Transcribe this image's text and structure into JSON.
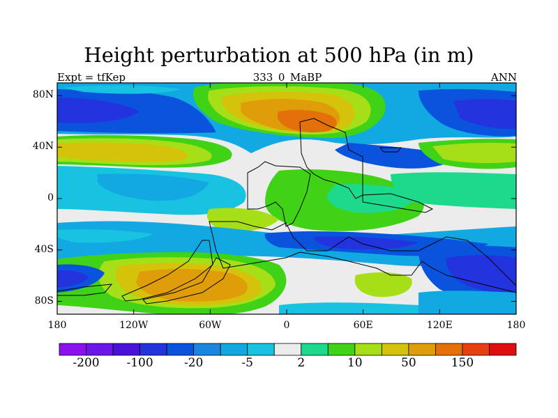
{
  "title": "Height perturbation at 500 hPa (in m)",
  "subtitle_left": "Expt = tfKep",
  "subtitle_center": "333_0_MaBP",
  "subtitle_right": "ANN",
  "axes": {
    "x_ticks": [
      {
        "value": -180,
        "label": "180"
      },
      {
        "value": -120,
        "label": "120W"
      },
      {
        "value": -60,
        "label": "60W"
      },
      {
        "value": 0,
        "label": "0"
      },
      {
        "value": 60,
        "label": "60E"
      },
      {
        "value": 120,
        "label": "120E"
      },
      {
        "value": 180,
        "label": "180"
      }
    ],
    "y_ticks": [
      {
        "value": 80,
        "label": "80N"
      },
      {
        "value": 40,
        "label": "40N"
      },
      {
        "value": 0,
        "label": "0"
      },
      {
        "value": -40,
        "label": "40S"
      },
      {
        "value": -80,
        "label": "80S"
      }
    ],
    "lon_range": [
      -180,
      180
    ],
    "lat_range": [
      -90,
      90
    ]
  },
  "colorbar": {
    "colors": [
      "#8d10ef",
      "#6d16ea",
      "#4a12d9",
      "#2333dd",
      "#0a54dd",
      "#1a86e0",
      "#12a8e2",
      "#18c3e2",
      "#ececec",
      "#1dd98b",
      "#3fd216",
      "#a6df18",
      "#d4c30a",
      "#e09d0a",
      "#e3700a",
      "#e64010",
      "#e00e0e"
    ],
    "labels": [
      {
        "after_box": 1,
        "text": "-200"
      },
      {
        "after_box": 3,
        "text": "-100"
      },
      {
        "after_box": 5,
        "text": "-20"
      },
      {
        "after_box": 7,
        "text": "-5"
      },
      {
        "after_box": 9,
        "text": "2"
      },
      {
        "after_box": 11,
        "text": "10"
      },
      {
        "after_box": 13,
        "text": "50"
      },
      {
        "after_box": 15,
        "text": "150"
      }
    ]
  }
}
